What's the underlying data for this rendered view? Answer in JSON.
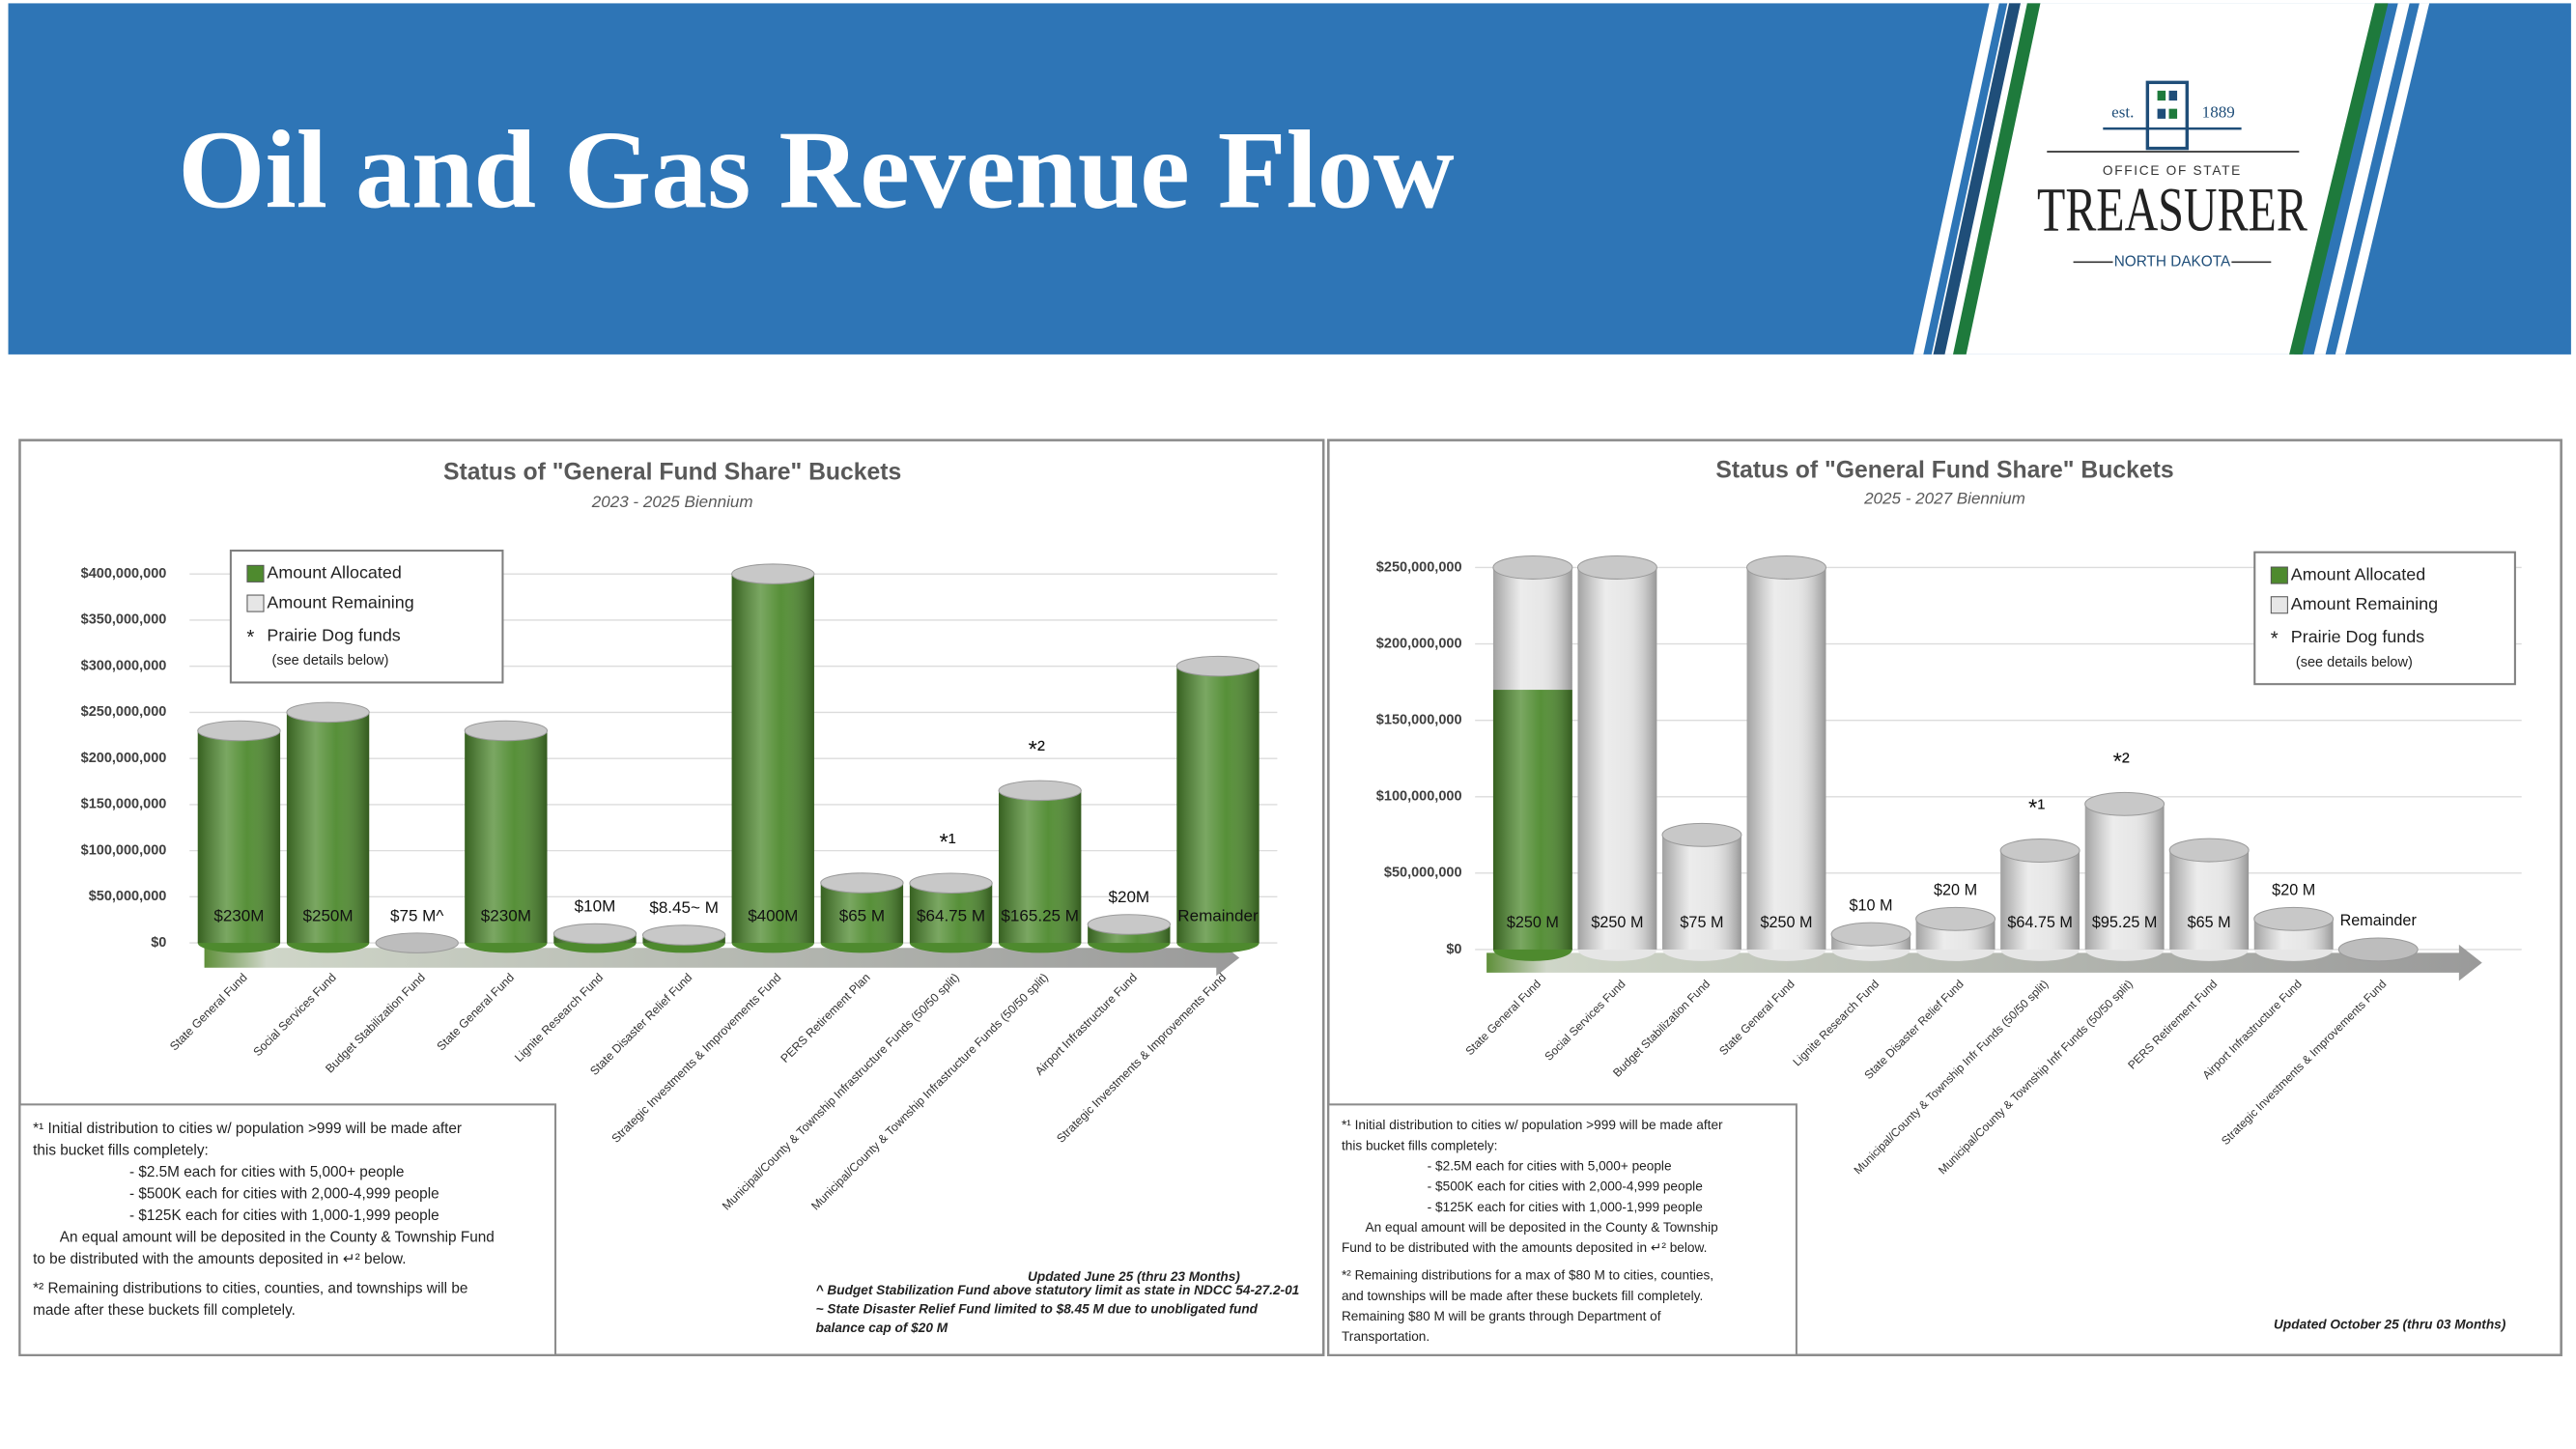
{
  "header": {
    "title": "Oil and Gas Revenue Flow"
  },
  "logo": {
    "est": "est.",
    "year": "1889",
    "office": "OFFICE OF STATE",
    "name": "TREASURER",
    "state": "NORTH DAKOTA"
  },
  "chart_data": [
    {
      "type": "bar",
      "stacked": true,
      "title": "Status of \"General Fund Share\" Buckets",
      "subtitle": "2023 - 2025 Biennium",
      "categories": [
        "State General Fund",
        "Social Services Fund",
        "Budget Stabilization Fund",
        "State General Fund",
        "Lignite Research Fund",
        "State Disaster Relief Fund",
        "Strategic Investments & Improvements Fund",
        "PERS Retirement Plan",
        "Municipal/County & Township Infrastructure Funds (50/50 split)",
        "Municipal/County & Township Infrastructure Funds (50/50 split)",
        "Airport Infrastructure Fund",
        "Strategic Investments & Improvements Fund"
      ],
      "series": [
        {
          "name": "Amount Allocated",
          "color": "#4e8a2e",
          "values": [
            230000000,
            250000000,
            0,
            230000000,
            10000000,
            8450000,
            400000000,
            65000000,
            64750000,
            165250000,
            20000000,
            300000000
          ]
        },
        {
          "name": "Amount Remaining",
          "color": "#e6e6e6",
          "values": [
            0,
            0,
            0,
            0,
            0,
            0,
            0,
            0,
            0,
            0,
            0,
            0
          ]
        }
      ],
      "bucket_labels": [
        "$230M",
        "$250M",
        "$75 M^",
        "$230M",
        "$10M",
        "$8.45~ M",
        "$400M",
        "$65 M",
        "$64.75 M",
        "$165.25 M",
        "$20M",
        "Remainder"
      ],
      "markers": [
        null,
        null,
        null,
        null,
        null,
        null,
        null,
        null,
        "*¹",
        "*²",
        null,
        null
      ],
      "legend": {
        "marker": "*",
        "text": "Prairie Dog funds",
        "note": "(see details below)"
      },
      "ylim": [
        0,
        420000000
      ],
      "yticks": [
        {
          "value": 0,
          "label": "$0"
        },
        {
          "value": 50000000,
          "label": "$50,000,000"
        },
        {
          "value": 100000000,
          "label": "$100,000,000"
        },
        {
          "value": 150000000,
          "label": "$150,000,000"
        },
        {
          "value": 200000000,
          "label": "$200,000,000"
        },
        {
          "value": 250000000,
          "label": "$250,000,000"
        },
        {
          "value": 300000000,
          "label": "$300,000,000"
        },
        {
          "value": 350000000,
          "label": "$350,000,000"
        },
        {
          "value": 400000000,
          "label": "$400,000,000"
        }
      ],
      "grid": true,
      "footnotes": [
        [
          "*¹ Initial distribution to cities w/ population >999 will be made after",
          "this bucket fills completely:",
          "- $2.5M each for cities with 5,000+ people",
          "- $500K each for cities with 2,000-4,999 people",
          "- $125K each for cities with 1,000-1,999 people",
          "An equal amount will be deposited in the County & Township Fund",
          "to be distributed with the amounts deposited in ↵² below."
        ],
        [
          "*² Remaining distributions to cities, counties, and townships will be",
          "made after these buckets fill completely."
        ]
      ],
      "updated": "Updated June 25 (thru 23 Months)",
      "notes": [
        "^ Budget Stabilization Fund above statutory limit as state in NDCC 54-27.2-01",
        "~ State Disaster Relief Fund limited to $8.45 M due to unobligated fund",
        "balance cap of $20 M"
      ]
    },
    {
      "type": "bar",
      "stacked": true,
      "title": "Status of \"General Fund Share\" Buckets",
      "subtitle": "2025 - 2027 Biennium",
      "categories": [
        "State General Fund",
        "Social Services Fund",
        "Budget Stabilization Fund",
        "State General Fund",
        "Lignite Research Fund",
        "State Disaster Relief Fund",
        "Municipal/County & Township Infr Funds (50/50 split)",
        "Municipal/County & Township Infr Funds (50/50 split)",
        "PERS Retirement Fund",
        "Airport Infrastructure Fund",
        "Strategic Investments & Improvements Fund"
      ],
      "series": [
        {
          "name": "Amount Allocated",
          "color": "#4e8a2e",
          "values": [
            170000000,
            0,
            0,
            0,
            0,
            0,
            0,
            0,
            0,
            0,
            0
          ]
        },
        {
          "name": "Amount Remaining",
          "color": "#e6e6e6",
          "values": [
            80000000,
            250000000,
            75000000,
            250000000,
            10000000,
            20000000,
            64750000,
            95250000,
            65000000,
            20000000,
            0
          ]
        }
      ],
      "bucket_labels": [
        "$250 M",
        "$250 M",
        "$75 M",
        "$250 M",
        "$10 M",
        "$20 M",
        "$64.75 M",
        "$95.25 M",
        "$65 M",
        "$20 M",
        "Remainder"
      ],
      "markers": [
        null,
        null,
        null,
        null,
        null,
        null,
        "*¹",
        "*²",
        null,
        null,
        null
      ],
      "legend": {
        "marker": "*",
        "text": "Prairie Dog funds",
        "note": "(see details below)"
      },
      "ylim": [
        0,
        260000000
      ],
      "yticks": [
        {
          "value": 0,
          "label": "$0"
        },
        {
          "value": 50000000,
          "label": "$50,000,000"
        },
        {
          "value": 100000000,
          "label": "$100,000,000"
        },
        {
          "value": 150000000,
          "label": "$150,000,000"
        },
        {
          "value": 200000000,
          "label": "$200,000,000"
        },
        {
          "value": 250000000,
          "label": "$250,000,000"
        }
      ],
      "grid": true,
      "footnotes": [
        [
          "*¹ Initial distribution to cities w/ population >999 will be made after",
          "this bucket fills completely:",
          "- $2.5M each for cities with 5,000+ people",
          "- $500K each for cities with 2,000-4,999 people",
          "- $125K each for cities with 1,000-1,999 people",
          "An equal amount will be deposited in the County & Township",
          "Fund to be distributed with the amounts deposited in ↵² below."
        ],
        [
          "*² Remaining distributions for a max of $80 M to cities, counties,",
          "and townships will be made after these buckets fill completely.",
          "Remaining $80 M will be grants through Department of",
          "Transportation."
        ]
      ],
      "updated": "Updated October 25 (thru 03 Months)"
    }
  ]
}
